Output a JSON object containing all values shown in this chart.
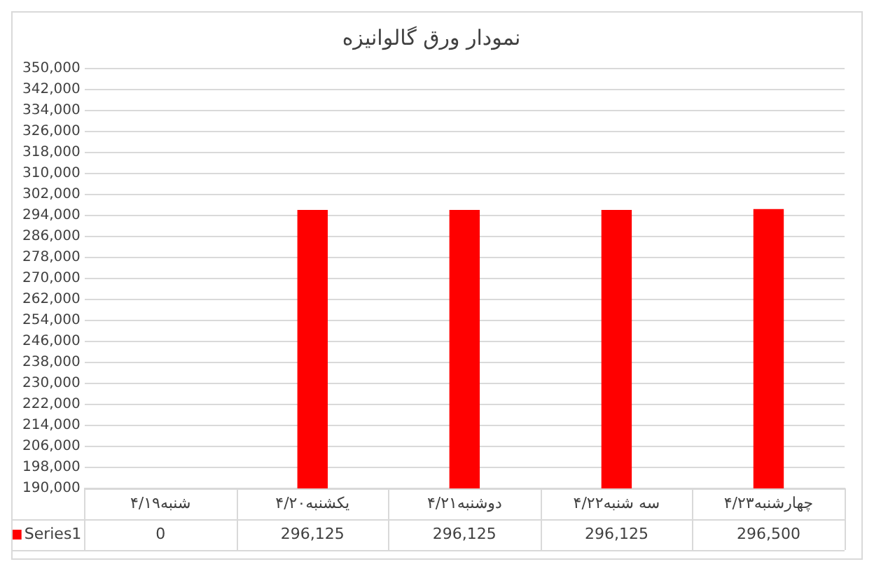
{
  "chart_data": {
    "type": "bar",
    "title": "نمودار ورق گالوانیزه",
    "categories": [
      "شنبه۴/۱۹",
      "یکشنبه۴/۲۰",
      "دوشنبه۴/۲۱",
      "سه شنبه۴/۲۲",
      "چهارشنبه۴/۲۳"
    ],
    "series": [
      {
        "name": "Series1",
        "color": "#ff0000",
        "values": [
          null,
          296125,
          296125,
          296125,
          296500
        ],
        "value_labels": [
          "0",
          "296,125",
          "296,125",
          "296,125",
          "296,500"
        ]
      }
    ],
    "ylim": [
      190000,
      350000
    ],
    "yticks": [
      {
        "value": 190000,
        "label": "190,000"
      },
      {
        "value": 198000,
        "label": "198,000"
      },
      {
        "value": 206000,
        "label": "206,000"
      },
      {
        "value": 214000,
        "label": "214,000"
      },
      {
        "value": 222000,
        "label": "222,000"
      },
      {
        "value": 230000,
        "label": "230,000"
      },
      {
        "value": 238000,
        "label": "238,000"
      },
      {
        "value": 246000,
        "label": "246,000"
      },
      {
        "value": 254000,
        "label": "254,000"
      },
      {
        "value": 262000,
        "label": "262,000"
      },
      {
        "value": 270000,
        "label": "270,000"
      },
      {
        "value": 278000,
        "label": "278,000"
      },
      {
        "value": 286000,
        "label": "286,000"
      },
      {
        "value": 294000,
        "label": "294,000"
      },
      {
        "value": 302000,
        "label": "302,000"
      },
      {
        "value": 310000,
        "label": "310,000"
      },
      {
        "value": 318000,
        "label": "318,000"
      },
      {
        "value": 326000,
        "label": "326,000"
      },
      {
        "value": 334000,
        "label": "334,000"
      },
      {
        "value": 342000,
        "label": "342,000"
      },
      {
        "value": 350000,
        "label": "350,000"
      }
    ],
    "grid": "y",
    "legend": "bottom"
  }
}
